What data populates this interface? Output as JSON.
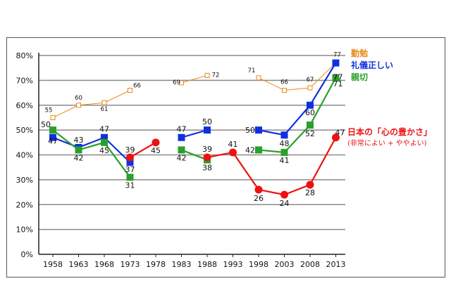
{
  "chart_data": {
    "type": "line",
    "title": "",
    "xlabel": "",
    "ylabel": "",
    "categories": [
      "1958",
      "1963",
      "1968",
      "1973",
      "1978",
      "1983",
      "1988",
      "1993",
      "1998",
      "2003",
      "2008",
      "2013"
    ],
    "ylim": [
      0,
      80
    ],
    "yticks": [
      "0%",
      "10%",
      "20%",
      "30%",
      "40%",
      "50%",
      "60%",
      "70%",
      "80%"
    ],
    "grid": true,
    "legend": "right",
    "series": [
      {
        "name": "勤勉",
        "color": "#e8891a",
        "marker": "hollow-square",
        "values": [
          55,
          60,
          61,
          66,
          null,
          69,
          72,
          null,
          71,
          66,
          67,
          77
        ],
        "labels": [
          "55",
          "60",
          "61",
          "66",
          "",
          "69",
          "72",
          "",
          "71",
          "66",
          "67",
          "77"
        ]
      },
      {
        "name": "礼儀正しい",
        "color": "#1030e0",
        "marker": "square",
        "values": [
          47,
          43,
          47,
          37,
          null,
          47,
          50,
          null,
          50,
          48,
          60,
          77
        ],
        "labels": [
          "47",
          "43",
          "47",
          "",
          "",
          "47",
          "50",
          "",
          "50",
          "48",
          "60",
          "77"
        ]
      },
      {
        "name": "親切",
        "color": "#2aa02a",
        "marker": "square",
        "values": [
          50,
          42,
          45,
          31,
          null,
          42,
          38,
          null,
          42,
          41,
          52,
          71
        ],
        "labels": [
          "50",
          "42",
          "45",
          "31",
          "",
          "42",
          "38",
          "",
          "42",
          "41",
          "52",
          "71"
        ]
      },
      {
        "name": "日本の「心の豊かさ」",
        "subtitle": "(非常によい + ややよい)",
        "color": "#ee1111",
        "marker": "circle",
        "values": [
          null,
          null,
          null,
          39,
          45,
          null,
          39,
          41,
          26,
          24,
          28,
          47
        ],
        "labels": [
          "",
          "",
          "",
          "39",
          "45",
          "",
          "39",
          "41",
          "26",
          "24",
          "28",
          "47"
        ],
        "extra_labels": [
          "37"
        ]
      }
    ]
  }
}
